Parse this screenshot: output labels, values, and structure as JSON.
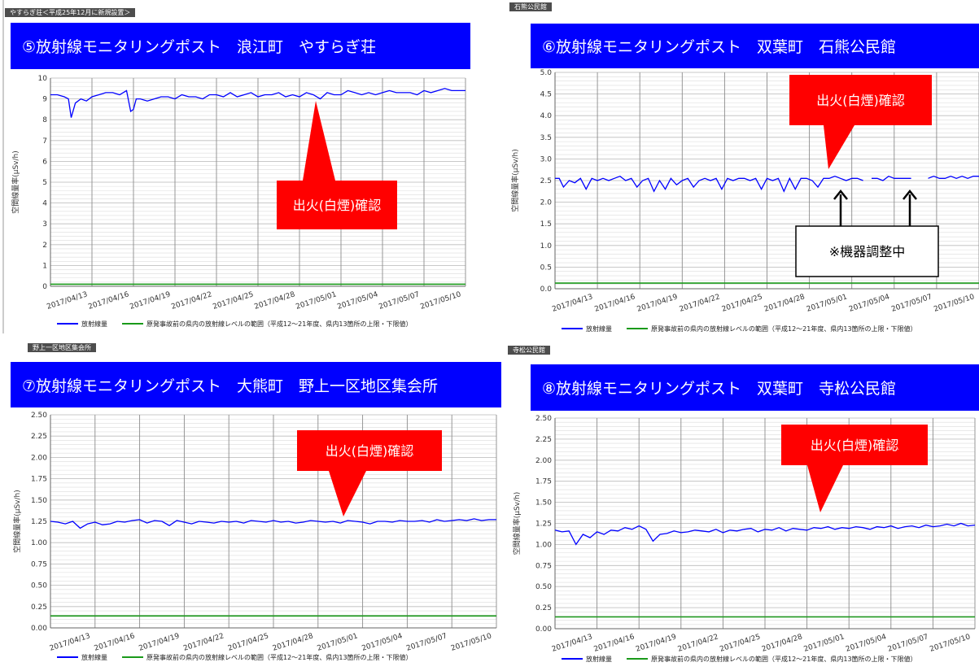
{
  "legend": {
    "series_label": "放射線量",
    "range_label": "原発事故前の県内の放射線レベルの範囲（平成12～21年度、県内13箇所の上限・下限値）"
  },
  "colors": {
    "banner": "#0000ff",
    "series": "#0000ff",
    "range_line": "#1a9a1a",
    "callout": "#ff0000"
  },
  "panels": [
    {
      "tag": "やすらぎ荘＜平成25年12月に新規設置＞",
      "title": "⑤放射線モニタリングポスト　浪江町　やすらぎ荘",
      "callout": "出火(白煙)確認"
    },
    {
      "tag": "石熊公民館",
      "title": "⑥放射線モニタリングポスト　双葉町　石熊公民館",
      "callout": "出火(白煙)確認",
      "note": "※機器調整中"
    },
    {
      "tag": "野上一区地区集会所",
      "title": "⑦放射線モニタリングポスト　大熊町　野上一区地区集会所",
      "callout": "出火(白煙)確認"
    },
    {
      "tag": "寺松公民館",
      "title": "⑧放射線モニタリングポスト　双葉町　寺松公民館",
      "callout": "出火(白煙)確認"
    }
  ],
  "chart_data": [
    {
      "type": "line",
      "ylabel": "空間線量率(μSv/h)",
      "ylim": [
        0,
        10
      ],
      "yticks": [
        "0",
        "1",
        "2",
        "3",
        "4",
        "5",
        "6",
        "7",
        "8",
        "9",
        "10"
      ],
      "xticks": [
        "2017/04/13",
        "2017/04/16",
        "2017/04/19",
        "2017/04/22",
        "2017/04/25",
        "2017/04/28",
        "2017/05/01",
        "2017/05/04",
        "2017/05/07",
        "2017/05/10"
      ],
      "grid": true,
      "legend_position": "bottom",
      "range_level": 0.1,
      "series": [
        {
          "name": "放射線量",
          "x": [
            0,
            0.5,
            1.0,
            1.3,
            1.5,
            1.8,
            2.2,
            2.6,
            3.0,
            3.5,
            4.0,
            4.5,
            5.0,
            5.5,
            5.8,
            6.0,
            6.2,
            6.5,
            7.0,
            7.5,
            8.0,
            8.5,
            9.0,
            9.5,
            10.0,
            10.5,
            11.0,
            11.5,
            12.0,
            12.5,
            13.0,
            13.5,
            14.0,
            14.5,
            15.0,
            15.5,
            16.0,
            16.5,
            17.0,
            17.5,
            18.0,
            18.5,
            19.0,
            19.5,
            20.0,
            20.5,
            21.0,
            21.5,
            22.0,
            22.5,
            23.0,
            23.5,
            24.0,
            24.5,
            25.0,
            25.5,
            26.0,
            26.5,
            27.0,
            27.5,
            28.0,
            28.5,
            29.0,
            29.5,
            30.0
          ],
          "values": [
            9.2,
            9.2,
            9.1,
            9.0,
            8.1,
            8.8,
            9.0,
            8.9,
            9.1,
            9.2,
            9.3,
            9.3,
            9.2,
            9.4,
            8.4,
            8.5,
            9.0,
            9.0,
            8.9,
            9.0,
            9.1,
            9.1,
            9.0,
            9.2,
            9.1,
            9.1,
            9.0,
            9.2,
            9.2,
            9.1,
            9.3,
            9.1,
            9.2,
            9.3,
            9.1,
            9.2,
            9.2,
            9.3,
            9.1,
            9.2,
            9.1,
            9.3,
            9.2,
            9.0,
            9.3,
            9.2,
            9.2,
            9.4,
            9.3,
            9.2,
            9.3,
            9.2,
            9.3,
            9.4,
            9.3,
            9.3,
            9.3,
            9.2,
            9.4,
            9.3,
            9.4,
            9.5,
            9.4,
            9.4,
            9.4
          ]
        }
      ]
    },
    {
      "type": "line",
      "ylabel": "空間線量率(μSv/h)",
      "ylim": [
        0,
        5
      ],
      "yticks": [
        "0.0",
        "0.5",
        "1.0",
        "1.5",
        "2.0",
        "2.5",
        "3.0",
        "3.5",
        "4.0",
        "4.5",
        "5.0"
      ],
      "xticks": [
        "2017/04/13",
        "2017/04/16",
        "2017/04/19",
        "2017/04/22",
        "2017/04/25",
        "2017/04/28",
        "2017/05/01",
        "2017/05/04",
        "2017/05/07",
        "2017/05/10"
      ],
      "grid": true,
      "legend_position": "bottom",
      "range_level": 0.13,
      "series": [
        {
          "name": "放射線量",
          "x": [
            0,
            0.3,
            0.6,
            1.0,
            1.4,
            1.8,
            2.2,
            2.6,
            3.0,
            3.4,
            3.8,
            4.2,
            4.6,
            5.0,
            5.4,
            5.8,
            6.2,
            6.6,
            7.0,
            7.4,
            7.8,
            8.2,
            8.6,
            9.0,
            9.4,
            9.8,
            10.2,
            10.6,
            11.0,
            11.4,
            11.8,
            12.2,
            12.6,
            13.0,
            13.4,
            13.8,
            14.2,
            14.6,
            15.0,
            15.4,
            15.8,
            16.2,
            16.6,
            17.0,
            17.4,
            17.8,
            18.2,
            18.6,
            19.0,
            19.4,
            19.8,
            20.2,
            20.6,
            21.0,
            21.4,
            21.8,
            null,
            22.4,
            22.8,
            23.2,
            23.6,
            24.0,
            24.4,
            24.8,
            25.2,
            null,
            26.4,
            26.8,
            27.2,
            27.6,
            28.0,
            28.4,
            28.8,
            29.2,
            29.6,
            30.0
          ],
          "values": [
            2.55,
            2.55,
            2.35,
            2.5,
            2.45,
            2.55,
            2.3,
            2.55,
            2.5,
            2.55,
            2.5,
            2.55,
            2.6,
            2.5,
            2.55,
            2.35,
            2.5,
            2.55,
            2.25,
            2.5,
            2.3,
            2.55,
            2.4,
            2.5,
            2.55,
            2.35,
            2.5,
            2.55,
            2.5,
            2.55,
            2.3,
            2.55,
            2.5,
            2.55,
            2.55,
            2.5,
            2.55,
            2.3,
            2.55,
            2.5,
            2.55,
            2.25,
            2.55,
            2.3,
            2.55,
            2.55,
            2.5,
            2.35,
            2.55,
            2.55,
            2.6,
            2.55,
            2.5,
            2.55,
            2.55,
            2.5,
            null,
            2.55,
            2.55,
            2.5,
            2.6,
            2.55,
            2.55,
            2.55,
            2.55,
            null,
            2.55,
            2.6,
            2.55,
            2.55,
            2.6,
            2.55,
            2.6,
            2.55,
            2.6,
            2.6
          ]
        }
      ]
    },
    {
      "type": "line",
      "ylabel": "空間線量率(μSv/h)",
      "ylim": [
        0,
        2.5
      ],
      "yticks": [
        "0.00",
        "0.25",
        "0.50",
        "0.75",
        "1.00",
        "1.25",
        "1.50",
        "1.75",
        "2.00",
        "2.25",
        "2.50"
      ],
      "xticks": [
        "2017/04/13",
        "2017/04/16",
        "2017/04/19",
        "2017/04/22",
        "2017/04/25",
        "2017/04/28",
        "2017/05/01",
        "2017/05/04",
        "2017/05/07",
        "2017/05/10"
      ],
      "grid": true,
      "legend_position": "bottom",
      "range_level": 0.14,
      "series": [
        {
          "name": "放射線量",
          "x": [
            0,
            0.5,
            1.0,
            1.5,
            2.0,
            2.5,
            3.0,
            3.5,
            4.0,
            4.5,
            5.0,
            5.5,
            6.0,
            6.5,
            7.0,
            7.5,
            8.0,
            8.5,
            9.0,
            9.5,
            10.0,
            10.5,
            11.0,
            11.5,
            12.0,
            12.5,
            13.0,
            13.5,
            14.0,
            14.5,
            15.0,
            15.5,
            16.0,
            16.5,
            17.0,
            17.5,
            18.0,
            18.5,
            19.0,
            19.5,
            20.0,
            20.5,
            21.0,
            21.5,
            22.0,
            22.5,
            23.0,
            23.5,
            24.0,
            24.5,
            25.0,
            25.5,
            26.0,
            26.5,
            27.0,
            27.5,
            28.0,
            28.5,
            29.0,
            29.5,
            30.0
          ],
          "values": [
            1.25,
            1.24,
            1.22,
            1.25,
            1.17,
            1.22,
            1.24,
            1.21,
            1.22,
            1.25,
            1.24,
            1.26,
            1.27,
            1.23,
            1.26,
            1.25,
            1.2,
            1.26,
            1.24,
            1.22,
            1.25,
            1.24,
            1.23,
            1.25,
            1.24,
            1.25,
            1.23,
            1.26,
            1.25,
            1.24,
            1.26,
            1.24,
            1.25,
            1.23,
            1.24,
            1.26,
            1.25,
            1.24,
            1.25,
            1.23,
            1.26,
            1.25,
            1.24,
            1.22,
            1.25,
            1.25,
            1.24,
            1.26,
            1.25,
            1.25,
            1.26,
            1.24,
            1.27,
            1.25,
            1.26,
            1.27,
            1.26,
            1.28,
            1.26,
            1.27,
            1.27
          ]
        }
      ]
    },
    {
      "type": "line",
      "ylabel": "空間線量率(μSv/h)",
      "ylim": [
        0,
        2.5
      ],
      "yticks": [
        "0.00",
        "0.25",
        "0.50",
        "0.75",
        "1.00",
        "1.25",
        "1.50",
        "1.75",
        "2.00",
        "2.25",
        "2.50"
      ],
      "xticks": [
        "2017/04/13",
        "2017/04/16",
        "2017/04/19",
        "2017/04/22",
        "2017/04/25",
        "2017/04/28",
        "2017/05/01",
        "2017/05/04",
        "2017/05/07",
        "2017/05/10"
      ],
      "grid": true,
      "legend_position": "bottom",
      "range_level": 0.14,
      "series": [
        {
          "name": "放射線量",
          "x": [
            0,
            0.5,
            1.0,
            1.5,
            2.0,
            2.5,
            3.0,
            3.5,
            4.0,
            4.5,
            5.0,
            5.5,
            6.0,
            6.5,
            7.0,
            7.5,
            8.0,
            8.5,
            9.0,
            9.5,
            10.0,
            10.5,
            11.0,
            11.5,
            12.0,
            12.5,
            13.0,
            13.5,
            14.0,
            14.5,
            15.0,
            15.5,
            16.0,
            16.5,
            17.0,
            17.5,
            18.0,
            18.5,
            19.0,
            19.5,
            20.0,
            20.5,
            21.0,
            21.5,
            22.0,
            22.5,
            23.0,
            23.5,
            24.0,
            24.5,
            25.0,
            25.5,
            26.0,
            26.5,
            27.0,
            27.5,
            28.0,
            28.5,
            29.0,
            29.5,
            30.0
          ],
          "values": [
            1.17,
            1.15,
            1.16,
            1.0,
            1.12,
            1.08,
            1.15,
            1.12,
            1.17,
            1.16,
            1.2,
            1.18,
            1.22,
            1.18,
            1.04,
            1.12,
            1.13,
            1.16,
            1.14,
            1.15,
            1.17,
            1.16,
            1.15,
            1.18,
            1.14,
            1.17,
            1.16,
            1.18,
            1.19,
            1.15,
            1.18,
            1.17,
            1.2,
            1.16,
            1.19,
            1.18,
            1.17,
            1.2,
            1.19,
            1.21,
            1.18,
            1.2,
            1.19,
            1.21,
            1.2,
            1.18,
            1.21,
            1.2,
            1.22,
            1.19,
            1.21,
            1.22,
            1.2,
            1.23,
            1.21,
            1.22,
            1.24,
            1.22,
            1.25,
            1.22,
            1.23
          ]
        }
      ]
    }
  ]
}
